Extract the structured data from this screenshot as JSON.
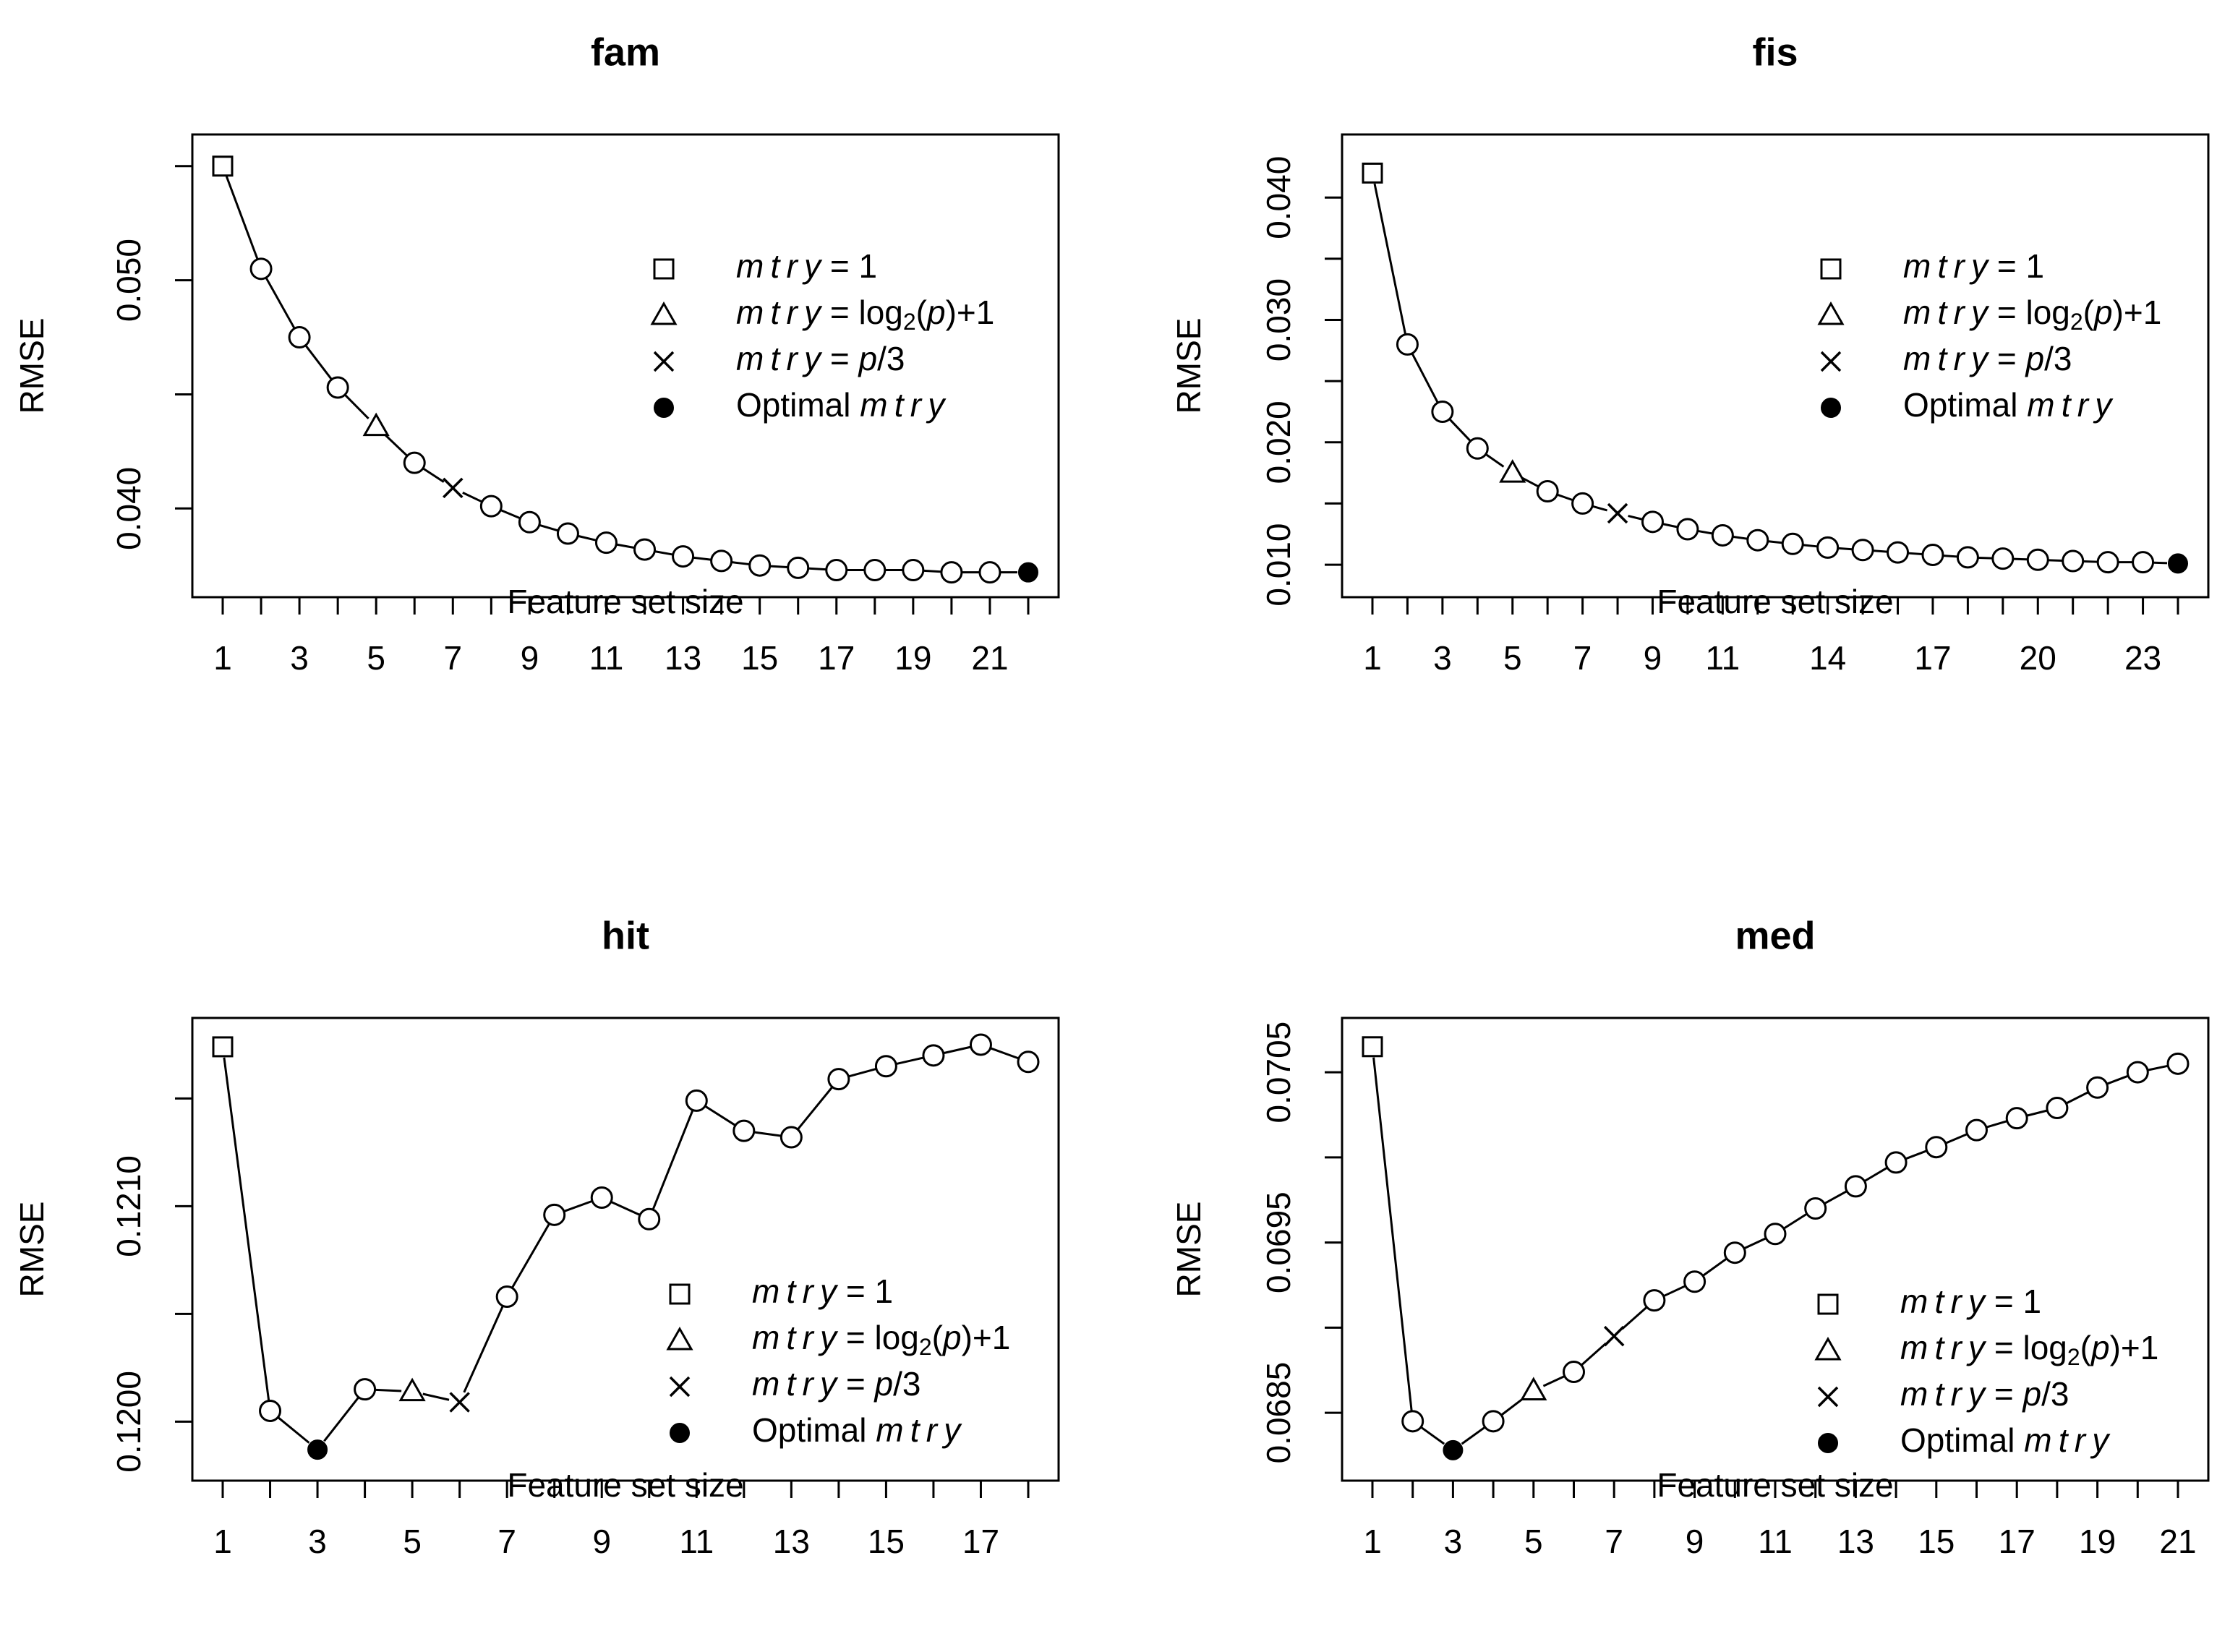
{
  "chart_data": [
    {
      "type": "line",
      "title": "fam",
      "xlabel": "Feature set size",
      "ylabel": "RMSE",
      "x": [
        1,
        2,
        3,
        4,
        5,
        6,
        7,
        8,
        9,
        10,
        11,
        12,
        13,
        14,
        15,
        16,
        17,
        18,
        19,
        20,
        21,
        22
      ],
      "values": [
        0.055,
        0.0505,
        0.0475,
        0.0453,
        0.0436,
        0.042,
        0.0409,
        0.0401,
        0.0394,
        0.0389,
        0.0385,
        0.0382,
        0.0379,
        0.0377,
        0.0375,
        0.0374,
        0.0373,
        0.0373,
        0.0373,
        0.0372,
        0.0372,
        0.0372
      ],
      "x_ticks": [
        "1",
        "3",
        "5",
        "7",
        "9",
        "11",
        "13",
        "15",
        "17",
        "19",
        "21"
      ],
      "y_ticks": [
        "0.040",
        "0.050"
      ],
      "xlim": [
        1,
        22
      ],
      "ylim": [
        0.037,
        0.0555
      ],
      "legend": [
        {
          "marker": "square",
          "prefix": "mtry",
          "text": " = 1"
        },
        {
          "marker": "triangle",
          "prefix": "mtry",
          "text": " = log2(p)+1"
        },
        {
          "marker": "cross",
          "prefix": "mtry",
          "text": " = p/3"
        },
        {
          "marker": "dot",
          "prefix": "",
          "text": "Optimal mtry"
        }
      ],
      "legend_position": "top-right",
      "special_points": {
        "square": 1,
        "triangle": 5,
        "cross": 7,
        "dot": 22
      }
    },
    {
      "type": "line",
      "title": "fis",
      "xlabel": "Feature set size",
      "ylabel": "RMSE",
      "x": [
        1,
        2,
        3,
        4,
        5,
        6,
        7,
        8,
        9,
        10,
        11,
        12,
        13,
        14,
        15,
        16,
        17,
        18,
        19,
        20,
        21,
        22,
        23,
        24
      ],
      "values": [
        0.042,
        0.028,
        0.0225,
        0.0195,
        0.0175,
        0.016,
        0.015,
        0.0142,
        0.0135,
        0.0129,
        0.0124,
        0.012,
        0.0117,
        0.0114,
        0.0112,
        0.011,
        0.0108,
        0.0106,
        0.0105,
        0.0104,
        0.0103,
        0.0102,
        0.0102,
        0.0101
      ],
      "x_ticks": [
        "1",
        "3",
        "5",
        "7",
        "9",
        "11",
        "14",
        "17",
        "20",
        "23"
      ],
      "y_ticks": [
        "0.010",
        "0.020",
        "0.030",
        "0.040"
      ],
      "xlim": [
        1,
        24
      ],
      "ylim": [
        0.009,
        0.0435
      ],
      "legend": [
        {
          "marker": "square",
          "prefix": "mtry",
          "text": " = 1"
        },
        {
          "marker": "triangle",
          "prefix": "mtry",
          "text": " = log2(p)+1"
        },
        {
          "marker": "cross",
          "prefix": "mtry",
          "text": " = p/3"
        },
        {
          "marker": "dot",
          "prefix": "",
          "text": "Optimal mtry"
        }
      ],
      "legend_position": "top-right",
      "special_points": {
        "square": 1,
        "triangle": 5,
        "cross": 8,
        "dot": 24
      }
    },
    {
      "type": "line",
      "title": "hit",
      "xlabel": "Feature set size",
      "ylabel": "RMSE",
      "x": [
        1,
        2,
        3,
        4,
        5,
        6,
        7,
        8,
        9,
        10,
        11,
        12,
        13,
        14,
        15,
        16,
        17,
        18
      ],
      "values": [
        0.12174,
        0.12005,
        0.11987,
        0.12015,
        0.12014,
        0.12009,
        0.12058,
        0.12096,
        0.12104,
        0.12094,
        0.12149,
        0.12135,
        0.12132,
        0.12159,
        0.12165,
        0.1217,
        0.12175,
        0.12167
      ],
      "x_ticks": [
        "1",
        "3",
        "5",
        "7",
        "9",
        "11",
        "13",
        "15",
        "17"
      ],
      "y_ticks": [
        "0.1200",
        "0.1210"
      ],
      "xlim": [
        1,
        18
      ],
      "ylim": [
        0.11982,
        0.12178
      ],
      "legend": [
        {
          "marker": "square",
          "prefix": "mtry",
          "text": " = 1"
        },
        {
          "marker": "triangle",
          "prefix": "mtry",
          "text": " = log2(p)+1"
        },
        {
          "marker": "cross",
          "prefix": "mtry",
          "text": " = p/3"
        },
        {
          "marker": "dot",
          "prefix": "",
          "text": "Optimal mtry"
        }
      ],
      "legend_position": "bottom-right",
      "special_points": {
        "square": 1,
        "triangle": 5,
        "cross": 6,
        "dot": 3
      }
    },
    {
      "type": "line",
      "title": "med",
      "xlabel": "Feature set size",
      "ylabel": "RMSE",
      "x": [
        1,
        2,
        3,
        4,
        5,
        6,
        7,
        8,
        9,
        10,
        11,
        12,
        13,
        14,
        15,
        16,
        17,
        18,
        19,
        20,
        21
      ],
      "values": [
        0.07065,
        0.06845,
        0.06828,
        0.06845,
        0.06863,
        0.06874,
        0.06895,
        0.06916,
        0.06927,
        0.06944,
        0.06955,
        0.0697,
        0.06983,
        0.06997,
        0.07006,
        0.07016,
        0.07023,
        0.07029,
        0.07041,
        0.0705,
        0.07055
      ],
      "x_ticks": [
        "1",
        "3",
        "5",
        "7",
        "9",
        "11",
        "13",
        "15",
        "17",
        "19",
        "21"
      ],
      "y_ticks": [
        "0.0685",
        "0.0695",
        "0.0705"
      ],
      "xlim": [
        1,
        21
      ],
      "ylim": [
        0.06822,
        0.0707
      ],
      "legend": [
        {
          "marker": "square",
          "prefix": "mtry",
          "text": " = 1"
        },
        {
          "marker": "triangle",
          "prefix": "mtry",
          "text": " = log2(p)+1"
        },
        {
          "marker": "cross",
          "prefix": "mtry",
          "text": " = p/3"
        },
        {
          "marker": "dot",
          "prefix": "",
          "text": "Optimal mtry"
        }
      ],
      "legend_position": "bottom-right",
      "special_points": {
        "square": 1,
        "triangle": 5,
        "cross": 7,
        "dot": 3
      }
    }
  ]
}
